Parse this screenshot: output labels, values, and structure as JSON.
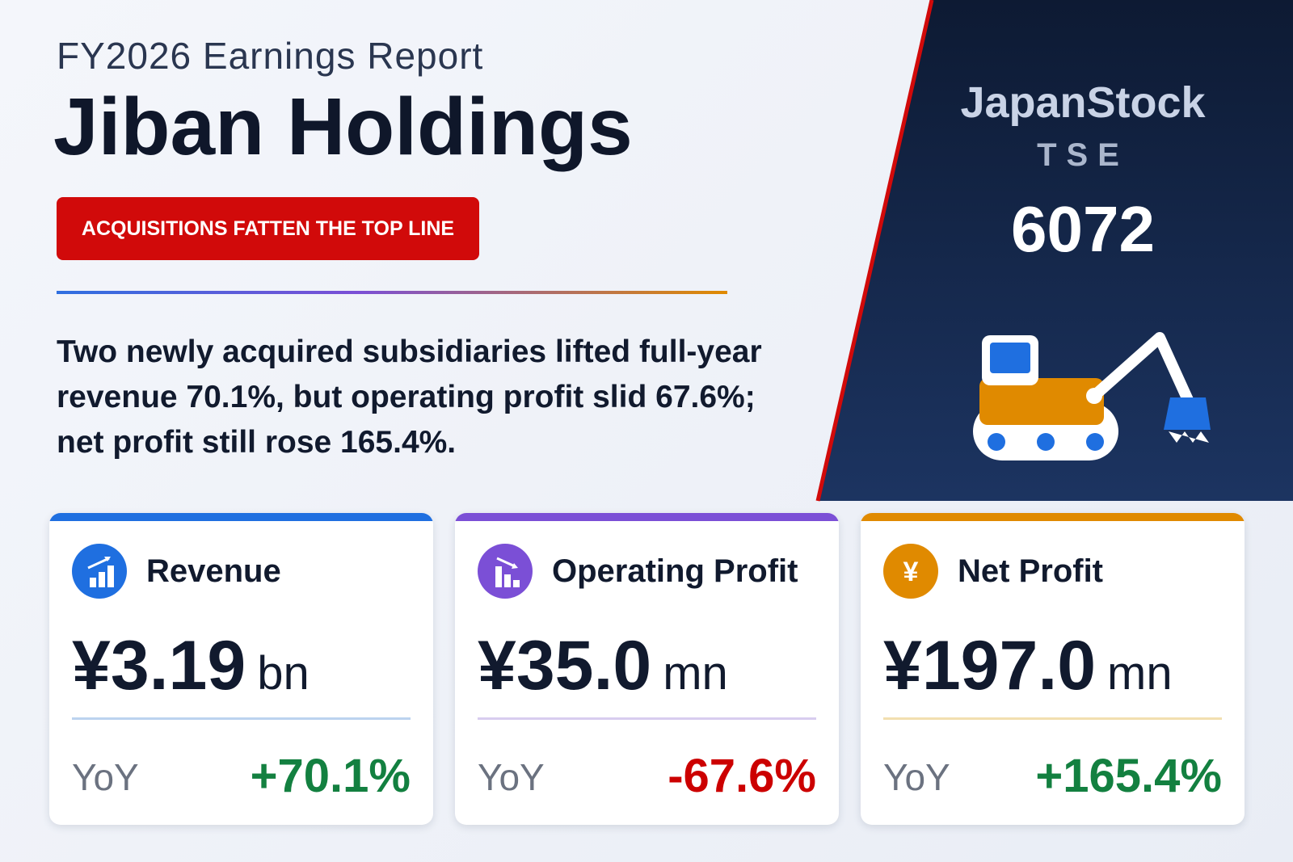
{
  "header": {
    "subtitle": "FY2026 Earnings Report",
    "title": "Jiban Holdings",
    "tag": "ACQUISITIONS FATTEN THE TOP LINE",
    "summary": "Two newly acquired subsidiaries lifted full-year revenue 70.1%, but operating profit slid 67.6%; net profit still rose 165.4%."
  },
  "brand": {
    "name": "JapanStock",
    "exchange": "TSE",
    "code": "6072"
  },
  "cards": [
    {
      "label": "Revenue",
      "amount": "¥3.19",
      "unit": "bn",
      "yoy_label": "YoY",
      "yoy": "+70.1%"
    },
    {
      "label": "Operating Profit",
      "amount": "¥35.0",
      "unit": "mn",
      "yoy_label": "YoY",
      "yoy": "-67.6%"
    },
    {
      "label": "Net Profit",
      "amount": "¥197.0",
      "unit": "mn",
      "yoy_label": "YoY",
      "yoy": "+165.4%"
    }
  ]
}
